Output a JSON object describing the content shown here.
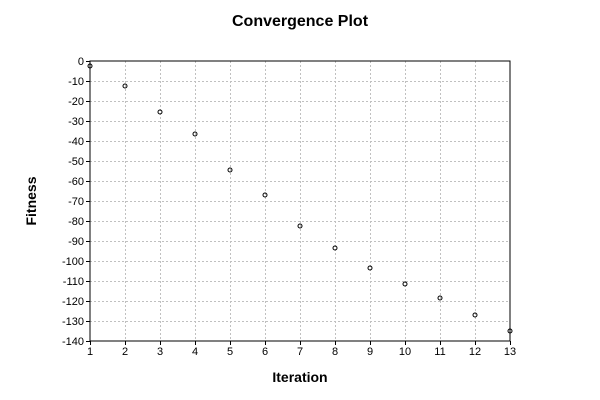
{
  "chart_data": {
    "type": "scatter",
    "title": "Convergence Plot",
    "xlabel": "Iteration",
    "ylabel": "Fitness",
    "xlim": [
      1,
      13
    ],
    "ylim": [
      -140,
      0
    ],
    "xticks": [
      1,
      2,
      3,
      4,
      5,
      6,
      7,
      8,
      9,
      10,
      11,
      12,
      13
    ],
    "yticks": [
      0,
      -10,
      -20,
      -30,
      -40,
      -50,
      -60,
      -70,
      -80,
      -90,
      -100,
      -110,
      -120,
      -130,
      -140
    ],
    "grid": true,
    "legend": "none",
    "series": [
      {
        "x": [
          1,
          2,
          3,
          4,
          5,
          6,
          7,
          8,
          9,
          10,
          11,
          12,
          13
        ],
        "y": [
          -2.5,
          -12.5,
          -25.5,
          -36.5,
          -54.5,
          -67,
          -82.5,
          -93.5,
          -103.5,
          -111.5,
          -118.5,
          -127,
          -135
        ]
      }
    ],
    "colors": {
      "point_stroke": "#000000",
      "grid": "#c0c0c0",
      "axis": "#000000"
    }
  }
}
